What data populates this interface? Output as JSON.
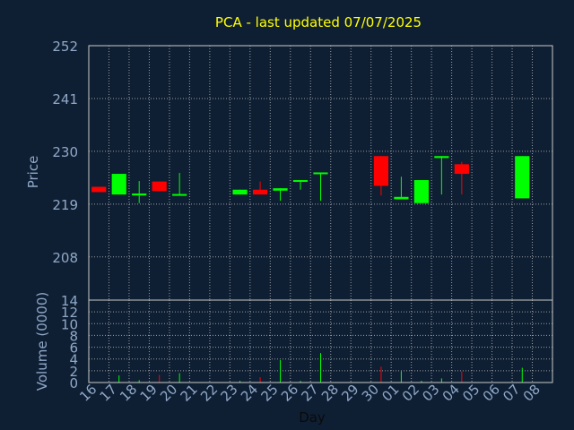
{
  "chart_data": {
    "type": "candlestick",
    "title": "PCA - last updated 07/07/2025",
    "xlabel": "Day",
    "colors": {
      "background": "#0f1f33",
      "title": "#ffff00",
      "axis_text": "#8fa8c8",
      "plot_border": "#c8c8c8",
      "grid": "#c8c8c8",
      "up": "#00ff00",
      "down": "#ff0000"
    },
    "price_panel": {
      "ylabel": "Price",
      "ylim": [
        199,
        252
      ],
      "yticks": [
        252,
        241,
        230,
        219,
        208
      ],
      "grid": true
    },
    "volume_panel": {
      "ylabel": "Volume (0000)",
      "ylim": [
        0,
        14
      ],
      "yticks": [
        0,
        2,
        4,
        6,
        8,
        10,
        12,
        14
      ],
      "grid": true
    },
    "x_tick_labels": [
      "16",
      "17",
      "18",
      "19",
      "20",
      "21",
      "22",
      "23",
      "24",
      "25",
      "26",
      "27",
      "28",
      "29",
      "30",
      "01",
      "02",
      "03",
      "04",
      "05",
      "06",
      "07",
      "08"
    ],
    "candles": [
      {
        "day": "16",
        "open": 222.6,
        "close": 221.5,
        "high": 222.6,
        "low": 221.5,
        "volume": 0
      },
      {
        "day": "17",
        "open": 221.0,
        "close": 225.3,
        "high": 225.3,
        "low": 221.0,
        "volume": 1.2
      },
      {
        "day": "18",
        "open": 220.8,
        "close": 221.2,
        "high": 223.8,
        "low": 219.2,
        "volume": 0.4
      },
      {
        "day": "19",
        "open": 223.7,
        "close": 221.7,
        "high": 223.7,
        "low": 221.7,
        "volume": 1.3
      },
      {
        "day": "20",
        "open": 220.8,
        "close": 221.1,
        "high": 225.5,
        "low": 220.8,
        "volume": 1.6
      },
      {
        "day": "23",
        "open": 221.0,
        "close": 222.0,
        "high": 222.0,
        "low": 221.0,
        "volume": 0.3
      },
      {
        "day": "24",
        "open": 222.0,
        "close": 221.0,
        "high": 223.7,
        "low": 221.0,
        "volume": 0.9
      },
      {
        "day": "25",
        "open": 221.8,
        "close": 222.3,
        "high": 222.3,
        "low": 219.7,
        "volume": 3.8
      },
      {
        "day": "26",
        "open": 223.7,
        "close": 224.0,
        "high": 224.0,
        "low": 222.0,
        "volume": 0.3
      },
      {
        "day": "27",
        "open": 225.3,
        "close": 225.6,
        "high": 225.6,
        "low": 219.7,
        "volume": 5.0
      },
      {
        "day": "30",
        "open": 229.0,
        "close": 222.8,
        "high": 229.0,
        "low": 220.8,
        "volume": 2.7
      },
      {
        "day": "01",
        "open": 220.0,
        "close": 220.5,
        "high": 224.7,
        "low": 220.0,
        "volume": 1.9
      },
      {
        "day": "02",
        "open": 219.2,
        "close": 224.0,
        "high": 224.0,
        "low": 219.2,
        "volume": 0.3
      },
      {
        "day": "03",
        "open": 228.6,
        "close": 229.0,
        "high": 229.0,
        "low": 221.0,
        "volume": 0.7
      },
      {
        "day": "04",
        "open": 227.3,
        "close": 225.3,
        "high": 227.8,
        "low": 221.0,
        "volume": 1.9
      },
      {
        "day": "07",
        "open": 220.2,
        "close": 229.0,
        "high": 229.0,
        "low": 220.2,
        "volume": 2.5
      }
    ]
  }
}
